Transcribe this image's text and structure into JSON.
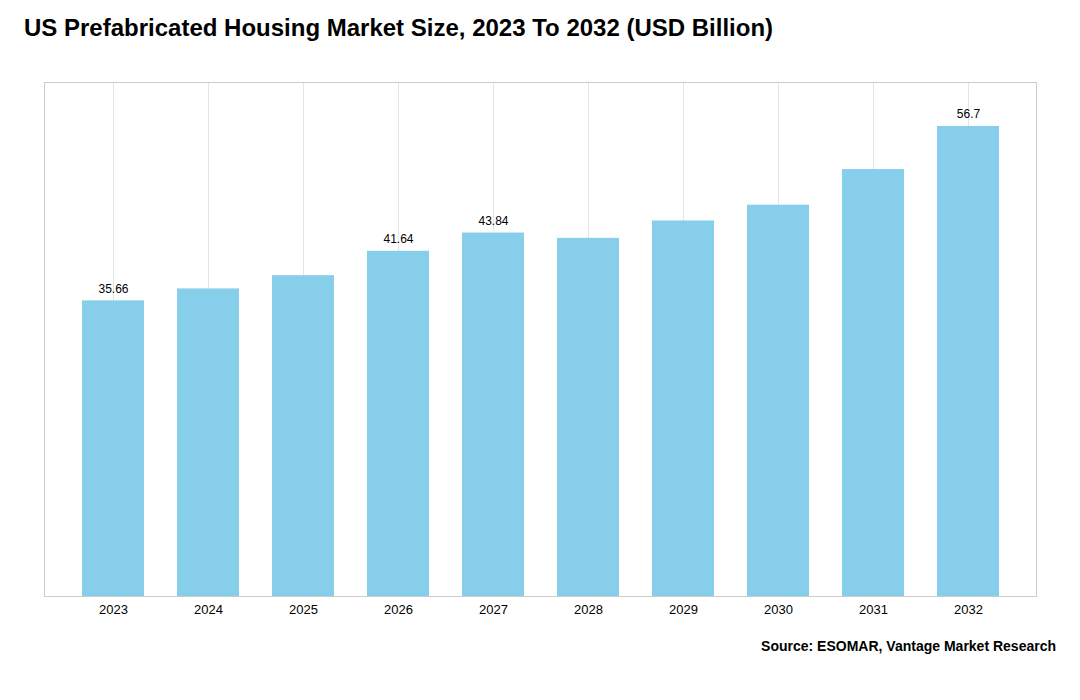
{
  "chart_data": {
    "type": "bar",
    "title": "US Prefabricated Housing Market Size, 2023 To 2032 (USD Billion)",
    "categories": [
      "2023",
      "2024",
      "2025",
      "2026",
      "2027",
      "2028",
      "2029",
      "2030",
      "2031",
      "2032"
    ],
    "values": [
      35.66,
      37.1,
      38.7,
      41.64,
      43.84,
      43.2,
      45.3,
      47.2,
      51.5,
      56.7
    ],
    "value_labels": [
      "35.66",
      null,
      null,
      "41.64",
      "43.84",
      null,
      null,
      null,
      null,
      "56.7"
    ],
    "color": "#87CEEB",
    "ylim": [
      0,
      62
    ],
    "grid": "x",
    "tick_labels": "x",
    "annotations": [
      "Source: ESOMAR, Vantage Market Research"
    ]
  }
}
